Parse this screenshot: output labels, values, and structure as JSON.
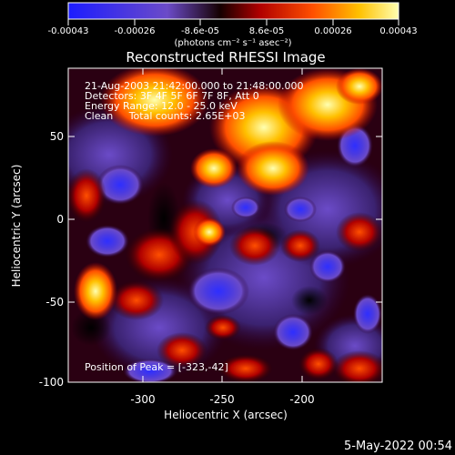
{
  "colorbar": {
    "tick_labels": [
      "-0.00043",
      "-0.00026",
      "-8.6e-05",
      "8.6e-05",
      "0.00026",
      "0.00043"
    ],
    "unit_label": "(photons cm⁻² s⁻¹ asec⁻²)",
    "colors": [
      "#1C1CFF",
      "#6B4BC8",
      "#2A0000",
      "#B00000",
      "#FF4F00",
      "#FFC000",
      "#FFFFA0"
    ]
  },
  "image": {
    "title": "Reconstructed RHESSI Image",
    "overlay_lines": [
      "21-Aug-2003 21:42:00.000 to 21:48:00.000",
      "Detectors: 3F 4F 5F 6F 7F 8F, Att 0",
      "Energy Range: 12.0 - 25.0 keV",
      "Clean     Total counts: 2.65E+03"
    ],
    "peak_text": "Position of Peak = [-323,-42]",
    "x_axis_label": "Heliocentric X (arcsec)",
    "y_axis_label": "Heliocentric Y (arcsec)",
    "x_ticks": [
      "-300",
      "-250",
      "-200"
    ],
    "y_ticks": [
      "50",
      "0",
      "-50",
      "-100"
    ]
  },
  "footer": {
    "timestamp": "5-May-2022 00:54"
  },
  "chart_data": {
    "type": "heatmap",
    "title": "Reconstructed RHESSI Image",
    "xlabel": "Heliocentric X (arcsec)",
    "ylabel": "Heliocentric Y (arcsec)",
    "xlim": [
      -350,
      -195
    ],
    "ylim": [
      -102,
      82
    ],
    "colorbar_range": [
      -0.00043,
      0.00043
    ],
    "colorbar_ticks": [
      -0.00043,
      -0.00026,
      -8.6e-05,
      8.6e-05,
      0.00026,
      0.00043
    ],
    "peak_position": [
      -323,
      -42
    ]
  }
}
